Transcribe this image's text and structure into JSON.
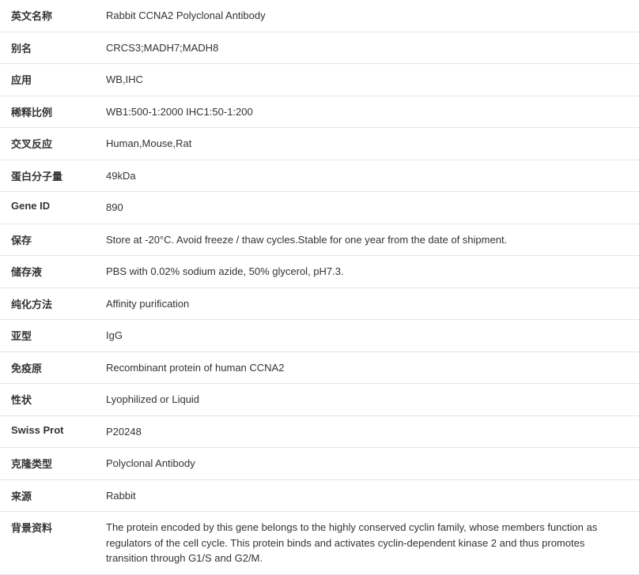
{
  "colors": {
    "text": "#333333",
    "border": "#e5e5e5",
    "background": "#ffffff"
  },
  "typography": {
    "font_family": "Microsoft YaHei, Arial, sans-serif",
    "label_fontsize": 13,
    "value_fontsize": 13,
    "label_weight": "bold"
  },
  "layout": {
    "label_width": 130,
    "row_padding_vertical": 10
  },
  "rows": [
    {
      "label": "英文名称",
      "value": "Rabbit CCNA2 Polyclonal Antibody"
    },
    {
      "label": "别名",
      "value": "CRCS3;MADH7;MADH8"
    },
    {
      "label": "应用",
      "value": "WB,IHC"
    },
    {
      "label": "稀释比例",
      "value": "WB1:500-1:2000 IHC1:50-1:200"
    },
    {
      "label": "交叉反应",
      "value": "Human,Mouse,Rat"
    },
    {
      "label": "蛋白分子量",
      "value": "49kDa"
    },
    {
      "label": "Gene ID",
      "value": "890"
    },
    {
      "label": "保存",
      "value": "Store at -20°C. Avoid freeze / thaw cycles.Stable for one year from the date of shipment."
    },
    {
      "label": "储存液",
      "value": "PBS with 0.02% sodium azide, 50% glycerol, pH7.3."
    },
    {
      "label": "纯化方法",
      "value": "Affinity purification"
    },
    {
      "label": "亚型",
      "value": "IgG"
    },
    {
      "label": "免疫原",
      "value": "Recombinant protein of human CCNA2"
    },
    {
      "label": "性状",
      "value": "Lyophilized or Liquid"
    },
    {
      "label": "Swiss Prot",
      "value": "P20248"
    },
    {
      "label": "克隆类型",
      "value": "Polyclonal Antibody"
    },
    {
      "label": "来源",
      "value": "Rabbit"
    },
    {
      "label": "背景资料",
      "value": "The protein encoded by this gene belongs to the highly conserved cyclin family, whose members function as regulators of the cell cycle. This protein binds and activates cyclin-dependent kinase 2 and thus promotes transition through G1/S and G2/M."
    }
  ]
}
